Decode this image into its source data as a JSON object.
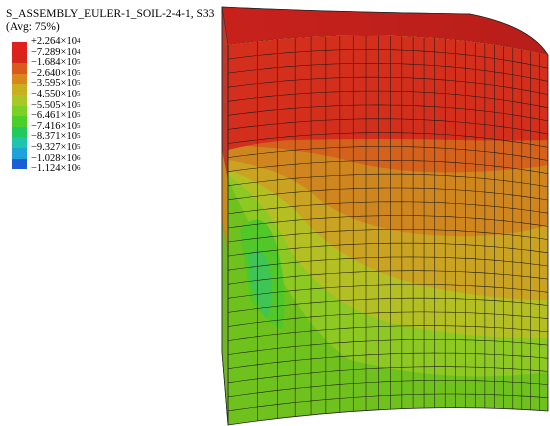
{
  "legend": {
    "title": "S_ASSEMBLY_EULER-1_SOIL-2-4-1, S33",
    "subtitle": "(Avg: 75%)",
    "entries": [
      {
        "mantissa": "+2.264",
        "exp": "4",
        "color": "#e0201c"
      },
      {
        "mantissa": "−7.289",
        "exp": "4",
        "color": "#d6261c"
      },
      {
        "mantissa": "−1.684",
        "exp": "5",
        "color": "#da5a1c"
      },
      {
        "mantissa": "−2.640",
        "exp": "5",
        "color": "#d9861c"
      },
      {
        "mantissa": "−3.595",
        "exp": "5",
        "color": "#c8b020"
      },
      {
        "mantissa": "−4.550",
        "exp": "5",
        "color": "#a9c825"
      },
      {
        "mantissa": "−5.505",
        "exp": "5",
        "color": "#7ccf23"
      },
      {
        "mantissa": "−6.461",
        "exp": "5",
        "color": "#4ccf2a"
      },
      {
        "mantissa": "−7.416",
        "exp": "5",
        "color": "#22c95c"
      },
      {
        "mantissa": "−8.371",
        "exp": "5",
        "color": "#1ec4ab"
      },
      {
        "mantissa": "−9.327",
        "exp": "5",
        "color": "#1da3d8"
      },
      {
        "mantissa": "−1.028",
        "exp": "6",
        "color": "#1a5ed6"
      },
      {
        "mantissa": "−1.124",
        "exp": "6",
        "color": "#1a2bcc"
      }
    ]
  }
}
